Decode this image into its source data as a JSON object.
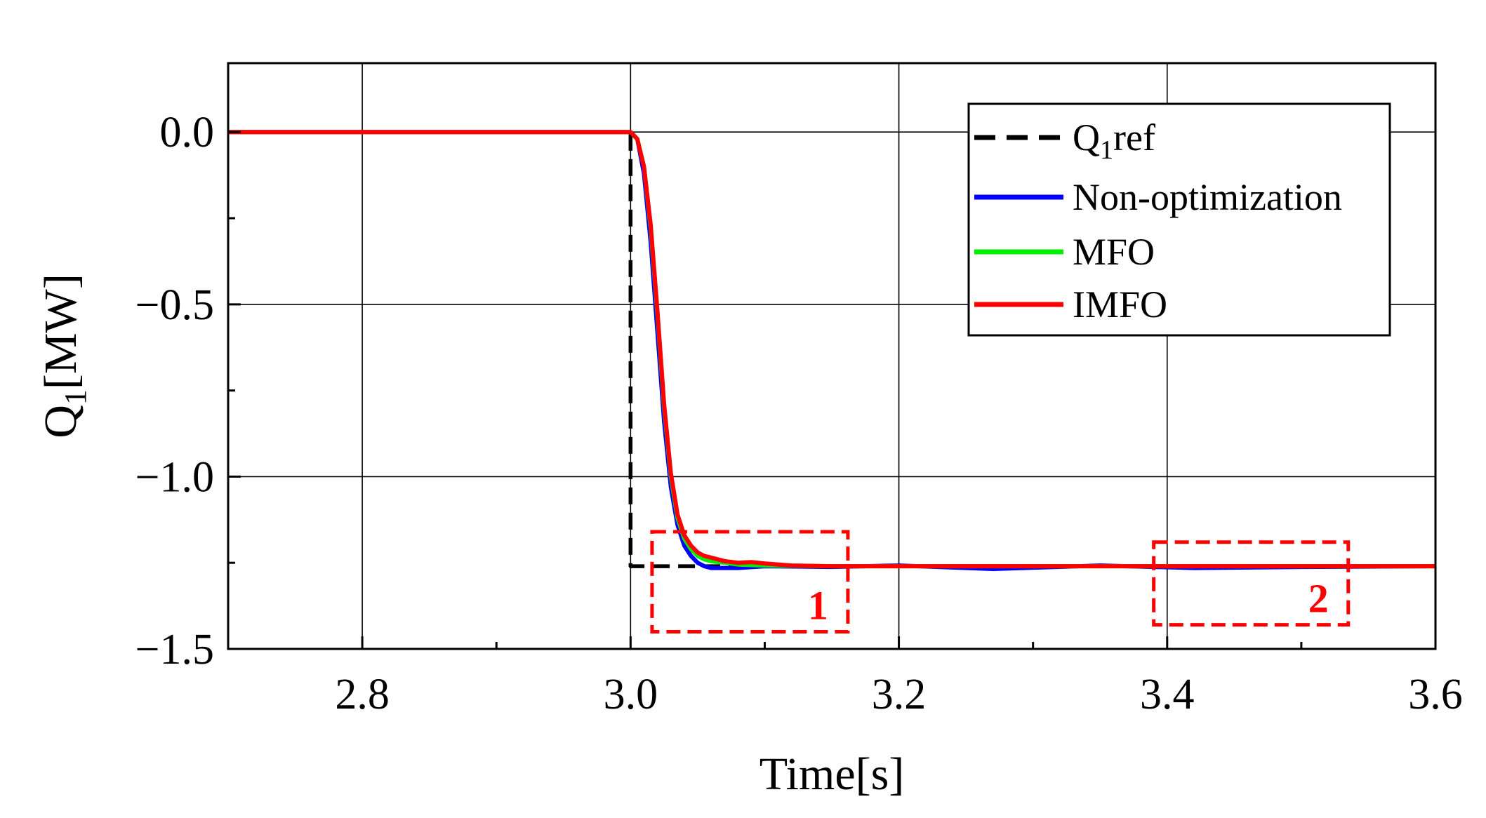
{
  "chart_data": {
    "type": "line",
    "xlabel": "Time[s]",
    "ylabel": "Q1[MW]",
    "ylabel_parts": {
      "main": "Q",
      "sub": "1",
      "rest": "[MW]"
    },
    "xlim": [
      2.7,
      3.6
    ],
    "ylim": [
      -1.5,
      0.2
    ],
    "xticks": [
      2.8,
      3.0,
      3.2,
      3.4,
      3.6
    ],
    "xtick_labels": [
      "2.8",
      "3.0",
      "3.2",
      "3.4",
      "3.6"
    ],
    "yticks": [
      0.0,
      -0.5,
      -1.0,
      -1.5
    ],
    "ytick_labels": [
      "0.0",
      "−0.5",
      "−1.0",
      "−1.5"
    ],
    "grid": true,
    "legend_position": "top-right",
    "series": [
      {
        "name": "Q1ref",
        "name_parts": {
          "main": "Q",
          "sub": "1",
          "rest": "ref"
        },
        "color": "#000000",
        "style": "dashed",
        "x": [
          2.7,
          2.999,
          3.0,
          3.0,
          3.025,
          3.6
        ],
        "y": [
          0.0,
          0.0,
          0.0,
          -1.26,
          -1.26,
          -1.26
        ]
      },
      {
        "name": "Non-optimization",
        "color": "#0000ff",
        "style": "solid",
        "x": [
          2.7,
          2.9,
          3.0,
          3.005,
          3.01,
          3.015,
          3.02,
          3.025,
          3.03,
          3.035,
          3.04,
          3.045,
          3.05,
          3.055,
          3.06,
          3.07,
          3.08,
          3.1,
          3.15,
          3.2,
          3.27,
          3.35,
          3.42,
          3.5,
          3.6
        ],
        "y": [
          0.0,
          0.0,
          0.0,
          -0.02,
          -0.12,
          -0.32,
          -0.58,
          -0.84,
          -1.03,
          -1.14,
          -1.2,
          -1.23,
          -1.25,
          -1.26,
          -1.265,
          -1.265,
          -1.265,
          -1.26,
          -1.262,
          -1.258,
          -1.268,
          -1.258,
          -1.265,
          -1.262,
          -1.26
        ]
      },
      {
        "name": "MFO",
        "color": "#00ee00",
        "style": "solid",
        "x": [
          2.7,
          2.9,
          3.0,
          3.005,
          3.01,
          3.015,
          3.02,
          3.025,
          3.03,
          3.035,
          3.04,
          3.045,
          3.05,
          3.055,
          3.06,
          3.07,
          3.08,
          3.1,
          3.15,
          3.2,
          3.3,
          3.4,
          3.5,
          3.6
        ],
        "y": [
          0.0,
          0.0,
          0.0,
          -0.02,
          -0.1,
          -0.28,
          -0.53,
          -0.8,
          -1.0,
          -1.12,
          -1.18,
          -1.21,
          -1.23,
          -1.24,
          -1.245,
          -1.25,
          -1.255,
          -1.258,
          -1.26,
          -1.26,
          -1.26,
          -1.26,
          -1.26,
          -1.26
        ]
      },
      {
        "name": "IMFO",
        "color": "#ff0000",
        "style": "solid",
        "x": [
          2.7,
          2.9,
          3.0,
          3.005,
          3.01,
          3.015,
          3.02,
          3.025,
          3.03,
          3.035,
          3.04,
          3.045,
          3.05,
          3.055,
          3.06,
          3.065,
          3.07,
          3.08,
          3.09,
          3.1,
          3.12,
          3.15,
          3.2,
          3.3,
          3.4,
          3.5,
          3.6
        ],
        "y": [
          0.0,
          0.0,
          0.0,
          -0.02,
          -0.1,
          -0.27,
          -0.52,
          -0.79,
          -0.99,
          -1.11,
          -1.17,
          -1.2,
          -1.22,
          -1.23,
          -1.235,
          -1.24,
          -1.245,
          -1.25,
          -1.248,
          -1.252,
          -1.258,
          -1.26,
          -1.26,
          -1.26,
          -1.26,
          -1.26,
          -1.26
        ]
      }
    ],
    "annotations": [
      {
        "label": "1",
        "x0": 3.016,
        "x1": 3.162,
        "y0": -1.16,
        "y1": -1.45
      },
      {
        "label": "2",
        "x0": 3.39,
        "x1": 3.535,
        "y0": -1.19,
        "y1": -1.43
      }
    ],
    "annotation_color": "#ff0000"
  }
}
